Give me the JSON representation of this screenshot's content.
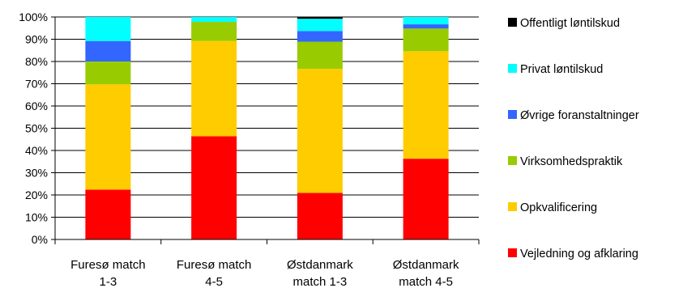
{
  "chart_data": {
    "type": "bar",
    "stacked": true,
    "percent_axis": true,
    "categories": [
      "Furesø match 1-3",
      "Furesø match 4-5",
      "Østdanmark match 1-3",
      "Østdanmark match 4-5"
    ],
    "category_lines": [
      [
        "Furesø match",
        "1-3"
      ],
      [
        "Furesø match",
        "4-5"
      ],
      [
        "Østdanmark",
        "match 1-3"
      ],
      [
        "Østdanmark",
        "match 4-5"
      ]
    ],
    "y_ticks": [
      "0%",
      "10%",
      "20%",
      "30%",
      "40%",
      "50%",
      "60%",
      "70%",
      "80%",
      "90%",
      "100%"
    ],
    "ylim": [
      0,
      100
    ],
    "grid": true,
    "legend_position": "right",
    "series": [
      {
        "name": "Vejledning og afklaring",
        "color": "#ff0000",
        "values": [
          22.4,
          46.4,
          20.9,
          36.3
        ]
      },
      {
        "name": "Opkvalificering",
        "color": "#ffcc00",
        "values": [
          47.3,
          42.8,
          55.8,
          48.3
        ]
      },
      {
        "name": "Virksomhedspraktik",
        "color": "#99cc00",
        "values": [
          10.3,
          8.6,
          12.2,
          10.2
        ]
      },
      {
        "name": "Øvrige foranstaltninger",
        "color": "#3366ff",
        "values": [
          9.2,
          0.0,
          4.8,
          1.9
        ]
      },
      {
        "name": "Privat løntilskud",
        "color": "#00ffff",
        "values": [
          10.8,
          2.2,
          5.5,
          3.3
        ]
      },
      {
        "name": "Offentligt løntilskud",
        "color": "#000000",
        "values": [
          0.0,
          0.0,
          0.8,
          0.0
        ]
      }
    ]
  }
}
